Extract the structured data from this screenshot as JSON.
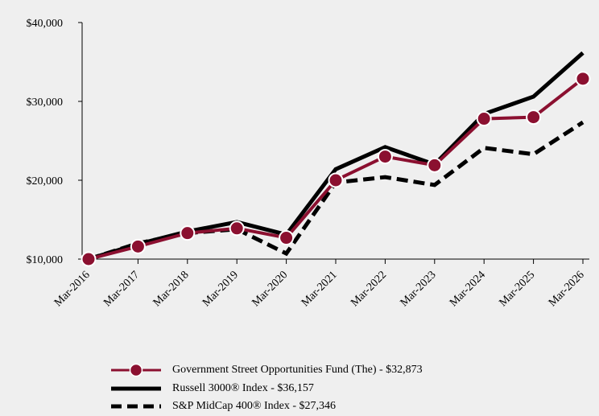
{
  "chart_data": {
    "type": "line",
    "categories": [
      "Mar-2016",
      "Mar-2017",
      "Mar-2018",
      "Mar-2019",
      "Mar-2020",
      "Mar-2021",
      "Mar-2022",
      "Mar-2023",
      "Mar-2024",
      "Mar-2025",
      "Mar-2026"
    ],
    "ylim": [
      10000,
      40000
    ],
    "yticks": [
      10000,
      20000,
      30000,
      40000
    ],
    "ytick_labels": [
      "$10,000",
      "$20,000",
      "$30,000",
      "$40,000"
    ],
    "grid": false,
    "legend_position": "bottom",
    "series": [
      {
        "name": "Government Street Opportunities Fund (The) - $32,873",
        "color": "#8b1030",
        "style": "solid-markers",
        "values": [
          10000,
          11600,
          13300,
          13900,
          12700,
          20000,
          23000,
          21900,
          27800,
          28000,
          32873
        ]
      },
      {
        "name": "Russell 3000® Index - $36,157",
        "color": "#000000",
        "style": "solid",
        "values": [
          10000,
          11900,
          13500,
          14700,
          13100,
          21400,
          24200,
          22000,
          28400,
          30600,
          36157
        ]
      },
      {
        "name": "S&P MidCap 400® Index - $27,346",
        "color": "#000000",
        "style": "dashed",
        "values": [
          10000,
          12000,
          13300,
          13800,
          10700,
          19700,
          20400,
          19400,
          24100,
          23300,
          27346
        ]
      }
    ]
  }
}
